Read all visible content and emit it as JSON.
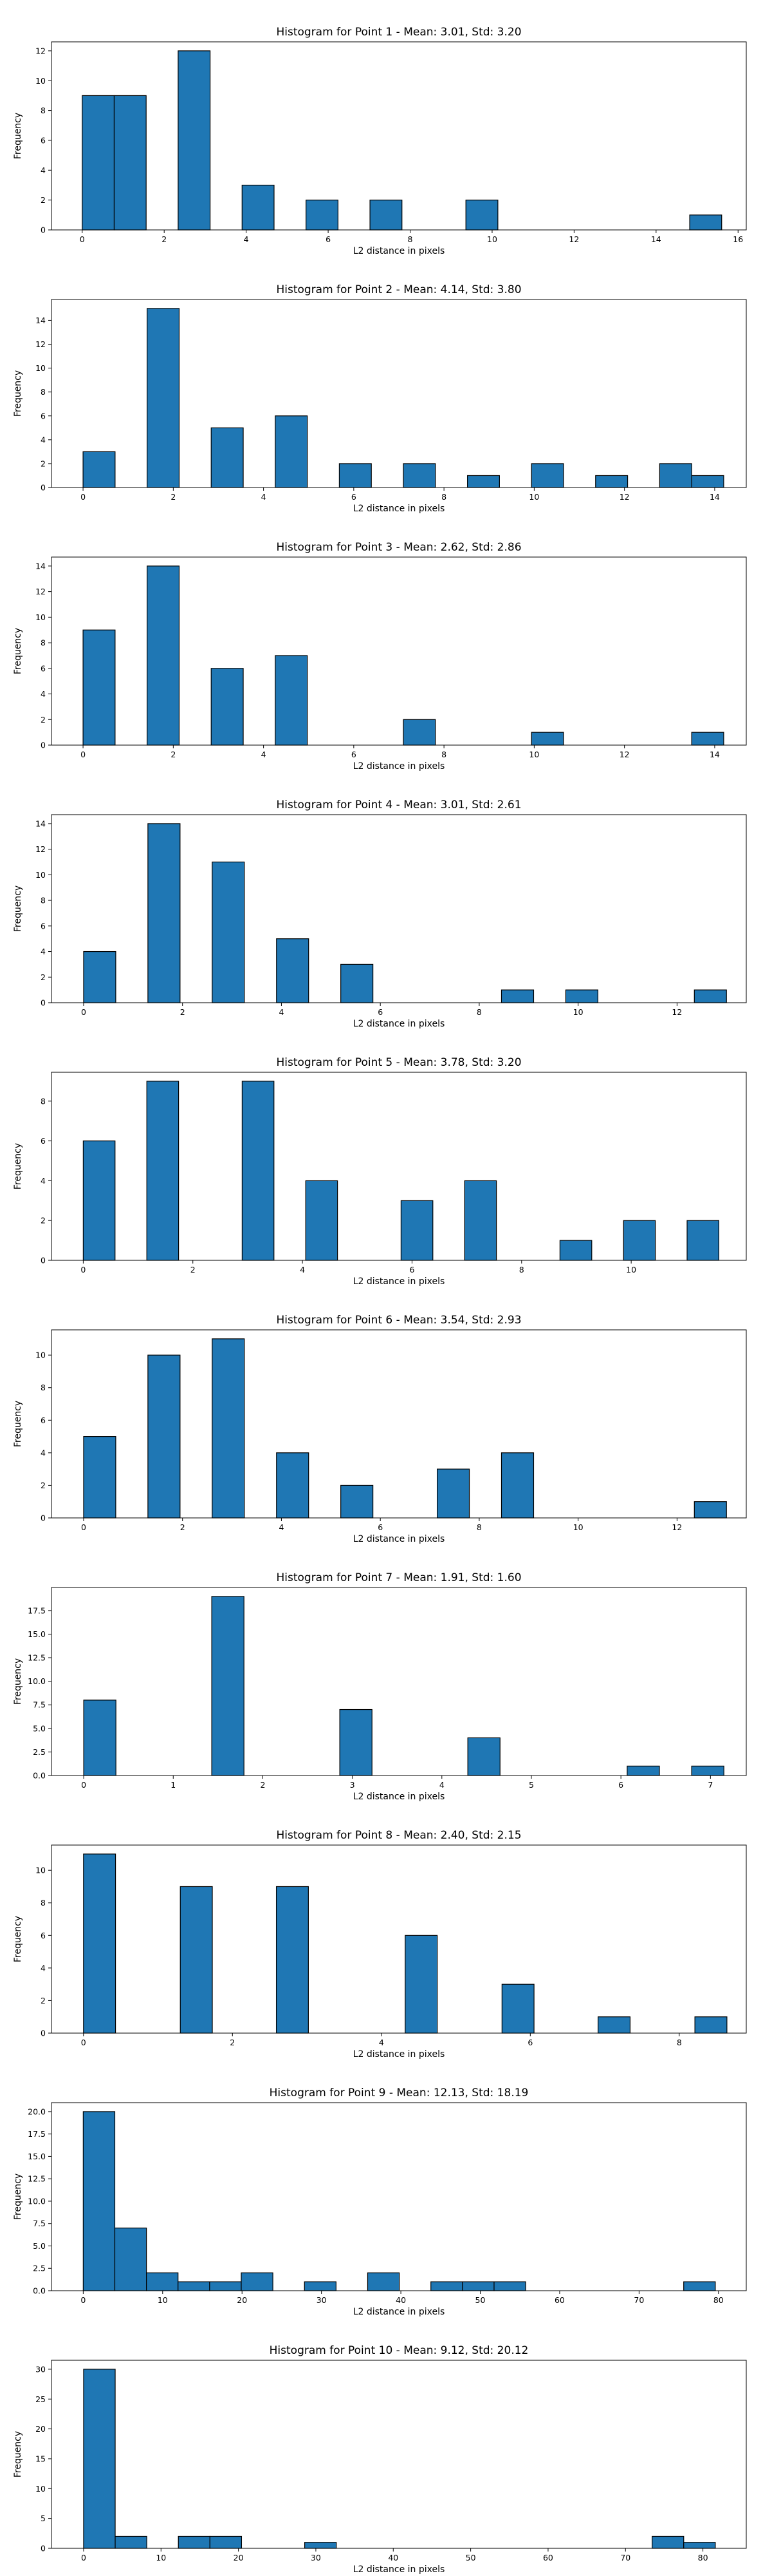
{
  "chart_data": [
    {
      "type": "bar",
      "title": "Histogram for Point 1 - Mean: 3.01, Std: 3.20",
      "xlabel": "L2 distance in pixels",
      "ylabel": "Frequency",
      "xlim": [
        -0.75,
        16.2
      ],
      "ylim": [
        0,
        12.6
      ],
      "xticks": [
        0,
        2,
        4,
        6,
        8,
        10,
        12,
        14,
        16
      ],
      "yticks": [
        0,
        2,
        4,
        6,
        8,
        10,
        12
      ],
      "bin_width": 0.78,
      "bins": [
        {
          "x": 0.0,
          "count": 9
        },
        {
          "x": 0.78,
          "count": 9
        },
        {
          "x": 2.34,
          "count": 12
        },
        {
          "x": 3.9,
          "count": 3
        },
        {
          "x": 5.46,
          "count": 2
        },
        {
          "x": 7.02,
          "count": 2
        },
        {
          "x": 9.36,
          "count": 2
        },
        {
          "x": 14.82,
          "count": 1
        }
      ],
      "bar_color": "#1f77b4"
    },
    {
      "type": "bar",
      "title": "Histogram for Point 2 - Mean: 4.14, Std: 3.80",
      "xlabel": "L2 distance in pixels",
      "ylabel": "Frequency",
      "xlim": [
        -0.7,
        14.7
      ],
      "ylim": [
        0,
        15.75
      ],
      "xticks": [
        0,
        2,
        4,
        6,
        8,
        10,
        12,
        14
      ],
      "yticks": [
        0,
        2,
        4,
        6,
        8,
        10,
        12,
        14
      ],
      "bin_width": 0.71,
      "bins": [
        {
          "x": 0.0,
          "count": 3
        },
        {
          "x": 1.42,
          "count": 15
        },
        {
          "x": 2.84,
          "count": 5
        },
        {
          "x": 4.26,
          "count": 6
        },
        {
          "x": 5.68,
          "count": 2
        },
        {
          "x": 7.1,
          "count": 2
        },
        {
          "x": 8.52,
          "count": 1
        },
        {
          "x": 9.94,
          "count": 2
        },
        {
          "x": 11.36,
          "count": 1
        },
        {
          "x": 12.78,
          "count": 2
        },
        {
          "x": 13.49,
          "count": 1
        }
      ],
      "bar_color": "#1f77b4"
    },
    {
      "type": "bar",
      "title": "Histogram for Point 3 - Mean: 2.62, Std: 2.86",
      "xlabel": "L2 distance in pixels",
      "ylabel": "Frequency",
      "xlim": [
        -0.7,
        14.7
      ],
      "ylim": [
        0,
        14.7
      ],
      "xticks": [
        0,
        2,
        4,
        6,
        8,
        10,
        12,
        14
      ],
      "yticks": [
        0,
        2,
        4,
        6,
        8,
        10,
        12,
        14
      ],
      "bin_width": 0.71,
      "bins": [
        {
          "x": 0.0,
          "count": 9
        },
        {
          "x": 1.42,
          "count": 14
        },
        {
          "x": 2.84,
          "count": 6
        },
        {
          "x": 4.26,
          "count": 7
        },
        {
          "x": 7.1,
          "count": 2
        },
        {
          "x": 9.94,
          "count": 1
        },
        {
          "x": 13.49,
          "count": 1
        }
      ],
      "bar_color": "#1f77b4"
    },
    {
      "type": "bar",
      "title": "Histogram for Point 4 - Mean: 3.01, Std: 2.61",
      "xlabel": "L2 distance in pixels",
      "ylabel": "Frequency",
      "xlim": [
        -0.65,
        13.4
      ],
      "ylim": [
        0,
        14.7
      ],
      "xticks": [
        0,
        2,
        4,
        6,
        8,
        10,
        12
      ],
      "yticks": [
        0,
        2,
        4,
        6,
        8,
        10,
        12,
        14
      ],
      "bin_width": 0.65,
      "bins": [
        {
          "x": 0.0,
          "count": 4
        },
        {
          "x": 1.3,
          "count": 14
        },
        {
          "x": 2.6,
          "count": 11
        },
        {
          "x": 3.9,
          "count": 5
        },
        {
          "x": 5.2,
          "count": 3
        },
        {
          "x": 8.45,
          "count": 1
        },
        {
          "x": 9.75,
          "count": 1
        },
        {
          "x": 12.35,
          "count": 1
        }
      ],
      "bar_color": "#1f77b4"
    },
    {
      "type": "bar",
      "title": "Histogram for Point 5 - Mean: 3.78, Std: 3.20",
      "xlabel": "L2 distance in pixels",
      "ylabel": "Frequency",
      "xlim": [
        -0.58,
        12.1
      ],
      "ylim": [
        0,
        9.45
      ],
      "xticks": [
        0,
        2,
        4,
        6,
        8,
        10
      ],
      "yticks": [
        0,
        2,
        4,
        6,
        8
      ],
      "bin_width": 0.58,
      "bins": [
        {
          "x": 0.0,
          "count": 6
        },
        {
          "x": 1.16,
          "count": 9
        },
        {
          "x": 2.9,
          "count": 9
        },
        {
          "x": 4.06,
          "count": 4
        },
        {
          "x": 5.8,
          "count": 3
        },
        {
          "x": 6.96,
          "count": 4
        },
        {
          "x": 8.7,
          "count": 1
        },
        {
          "x": 9.86,
          "count": 2
        },
        {
          "x": 11.02,
          "count": 2
        }
      ],
      "bar_color": "#1f77b4"
    },
    {
      "type": "bar",
      "title": "Histogram for Point 6 - Mean: 3.54, Std: 2.93",
      "xlabel": "L2 distance in pixels",
      "ylabel": "Frequency",
      "xlim": [
        -0.65,
        13.4
      ],
      "ylim": [
        0,
        11.55
      ],
      "xticks": [
        0,
        2,
        4,
        6,
        8,
        10,
        12
      ],
      "yticks": [
        0,
        2,
        4,
        6,
        8,
        10
      ],
      "bin_width": 0.65,
      "bins": [
        {
          "x": 0.0,
          "count": 5
        },
        {
          "x": 1.3,
          "count": 10
        },
        {
          "x": 2.6,
          "count": 11
        },
        {
          "x": 3.9,
          "count": 4
        },
        {
          "x": 5.2,
          "count": 2
        },
        {
          "x": 7.15,
          "count": 3
        },
        {
          "x": 8.45,
          "count": 4
        },
        {
          "x": 12.35,
          "count": 1
        }
      ],
      "bar_color": "#1f77b4"
    },
    {
      "type": "bar",
      "title": "Histogram for Point 7 - Mean: 1.91, Std: 1.60",
      "xlabel": "L2 distance in pixels",
      "ylabel": "Frequency",
      "xlim": [
        -0.36,
        7.4
      ],
      "ylim": [
        0,
        19.95
      ],
      "xticks": [
        0,
        1,
        2,
        3,
        4,
        5,
        6,
        7
      ],
      "yticks": [
        0.0,
        2.5,
        5.0,
        7.5,
        10.0,
        12.5,
        15.0,
        17.5
      ],
      "ytick_labels": [
        "0.0",
        "2.5",
        "5.0",
        "7.5",
        "10.0",
        "12.5",
        "15.0",
        "17.5"
      ],
      "bin_width": 0.36,
      "bins": [
        {
          "x": 0.0,
          "count": 8
        },
        {
          "x": 1.43,
          "count": 19
        },
        {
          "x": 2.86,
          "count": 7
        },
        {
          "x": 4.29,
          "count": 4
        },
        {
          "x": 6.07,
          "count": 1
        },
        {
          "x": 6.79,
          "count": 1
        }
      ],
      "bar_color": "#1f77b4"
    },
    {
      "type": "bar",
      "title": "Histogram for Point 8 - Mean: 2.40, Std: 2.15",
      "xlabel": "L2 distance in pixels",
      "ylabel": "Frequency",
      "xlim": [
        -0.43,
        8.9
      ],
      "ylim": [
        0,
        11.55
      ],
      "xticks": [
        0,
        2,
        4,
        6,
        8
      ],
      "yticks": [
        0,
        2,
        4,
        6,
        8,
        10
      ],
      "bin_width": 0.43,
      "bins": [
        {
          "x": 0.0,
          "count": 11
        },
        {
          "x": 1.3,
          "count": 9
        },
        {
          "x": 2.59,
          "count": 9
        },
        {
          "x": 4.32,
          "count": 6
        },
        {
          "x": 5.62,
          "count": 3
        },
        {
          "x": 6.91,
          "count": 1
        },
        {
          "x": 8.21,
          "count": 1
        }
      ],
      "bar_color": "#1f77b4"
    },
    {
      "type": "bar",
      "title": "Histogram for Point 9 - Mean: 12.13, Std: 18.19",
      "xlabel": "L2 distance in pixels",
      "ylabel": "Frequency",
      "xlim": [
        -4,
        83.5
      ],
      "ylim": [
        0,
        21
      ],
      "xticks": [
        0,
        10,
        20,
        30,
        40,
        50,
        60,
        70,
        80
      ],
      "yticks": [
        0.0,
        2.5,
        5.0,
        7.5,
        10.0,
        12.5,
        15.0,
        17.5,
        20.0
      ],
      "ytick_labels": [
        "0.0",
        "2.5",
        "5.0",
        "7.5",
        "10.0",
        "12.5",
        "15.0",
        "17.5",
        "20.0"
      ],
      "bin_width": 3.98,
      "bins": [
        {
          "x": 0.0,
          "count": 20
        },
        {
          "x": 3.98,
          "count": 7
        },
        {
          "x": 7.96,
          "count": 2
        },
        {
          "x": 11.94,
          "count": 1
        },
        {
          "x": 15.92,
          "count": 1
        },
        {
          "x": 19.9,
          "count": 2
        },
        {
          "x": 27.86,
          "count": 1
        },
        {
          "x": 35.82,
          "count": 2
        },
        {
          "x": 43.78,
          "count": 1
        },
        {
          "x": 47.76,
          "count": 1
        },
        {
          "x": 51.74,
          "count": 1
        },
        {
          "x": 75.62,
          "count": 1
        }
      ],
      "bar_color": "#1f77b4"
    },
    {
      "type": "bar",
      "title": "Histogram for Point 10 - Mean: 9.12, Std: 20.12",
      "xlabel": "L2 distance in pixels",
      "ylabel": "Frequency",
      "xlim": [
        -4.15,
        85.6
      ],
      "ylim": [
        0,
        31.5
      ],
      "xticks": [
        0,
        10,
        20,
        30,
        40,
        50,
        60,
        70,
        80
      ],
      "yticks": [
        0,
        5,
        10,
        15,
        20,
        25,
        30
      ],
      "bin_width": 4.08,
      "bins": [
        {
          "x": 0.0,
          "count": 30
        },
        {
          "x": 4.08,
          "count": 2
        },
        {
          "x": 12.24,
          "count": 2
        },
        {
          "x": 16.32,
          "count": 2
        },
        {
          "x": 28.56,
          "count": 1
        },
        {
          "x": 73.44,
          "count": 2
        },
        {
          "x": 77.52,
          "count": 1
        }
      ],
      "bar_color": "#1f77b4"
    }
  ]
}
